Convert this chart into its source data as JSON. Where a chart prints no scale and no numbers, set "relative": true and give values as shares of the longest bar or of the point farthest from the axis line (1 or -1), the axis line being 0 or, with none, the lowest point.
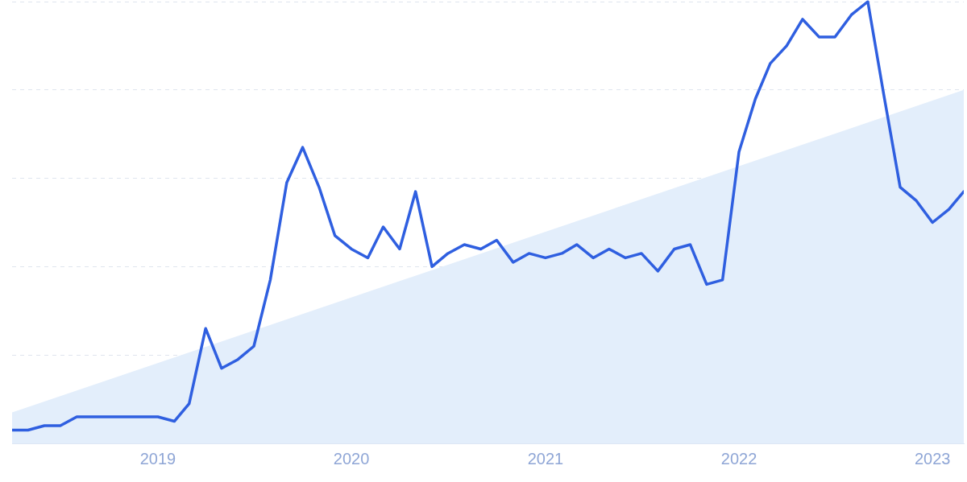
{
  "chart_data": {
    "type": "line",
    "relative": true,
    "grid": "y",
    "line_style": "solid",
    "marker": "none",
    "x": [
      "2018-04",
      "2018-05",
      "2018-06",
      "2018-07",
      "2018-08",
      "2018-09",
      "2018-10",
      "2018-11",
      "2018-12",
      "2019-01",
      "2019-02",
      "2019-03",
      "2019-04",
      "2019-05",
      "2019-06",
      "2019-07",
      "2019-08",
      "2019-09",
      "2019-10",
      "2019-11",
      "2019-12",
      "2020-01",
      "2020-02",
      "2020-03",
      "2020-04",
      "2020-05",
      "2020-06",
      "2020-07",
      "2020-08",
      "2020-09",
      "2020-10",
      "2020-11",
      "2020-12",
      "2021-01",
      "2021-02",
      "2021-03",
      "2021-04",
      "2021-05",
      "2021-06",
      "2021-07",
      "2021-08",
      "2021-09",
      "2021-10",
      "2021-11",
      "2021-12",
      "2022-01",
      "2022-02",
      "2022-03",
      "2022-04",
      "2022-05",
      "2022-06",
      "2022-07",
      "2022-08",
      "2022-09",
      "2022-10",
      "2022-11",
      "2022-12",
      "2023-01",
      "2023-02",
      "2023-03"
    ],
    "xlim": [
      "2018-04",
      "2023-03"
    ],
    "xticks": [
      "2019",
      "2020",
      "2021",
      "2022",
      "2023"
    ],
    "series": [
      {
        "type": "area",
        "color": "#e3eefb",
        "x": [
          "2018-04",
          "2023-03"
        ],
        "values": [
          0.07,
          0.8
        ]
      },
      {
        "color": "#2f5fe0",
        "values": [
          0.03,
          0.03,
          0.04,
          0.04,
          0.06,
          0.06,
          0.06,
          0.06,
          0.06,
          0.06,
          0.05,
          0.09,
          0.26,
          0.17,
          0.19,
          0.22,
          0.37,
          0.59,
          0.67,
          0.58,
          0.47,
          0.44,
          0.42,
          0.49,
          0.44,
          0.57,
          0.4,
          0.43,
          0.45,
          0.44,
          0.46,
          0.41,
          0.43,
          0.42,
          0.43,
          0.45,
          0.42,
          0.44,
          0.42,
          0.43,
          0.39,
          0.44,
          0.45,
          0.36,
          0.37,
          0.66,
          0.78,
          0.86,
          0.9,
          0.96,
          0.92,
          0.92,
          0.97,
          1,
          0.79,
          0.58,
          0.55,
          0.5,
          0.53,
          0.57
        ]
      }
    ]
  }
}
